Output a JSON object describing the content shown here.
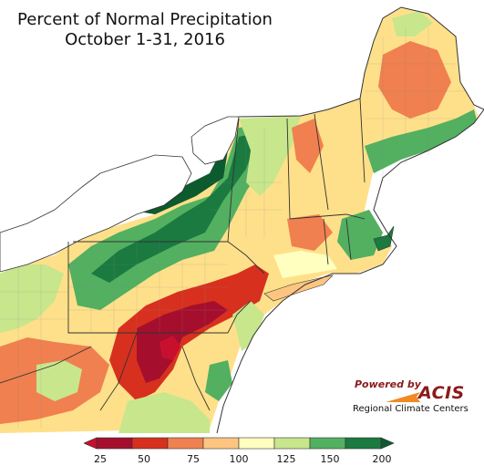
{
  "title": {
    "line1": "Percent of Normal Precipitation",
    "line2": "October 1-31, 2016"
  },
  "logo": {
    "powered_by": "Powered by",
    "name": "ACIS",
    "subtitle": "Regional Climate Centers"
  },
  "legend": {
    "ticks": [
      "25",
      "50",
      "75",
      "100",
      "125",
      "150",
      "200"
    ],
    "colors": [
      "#c8102e",
      "#a50f2d",
      "#d7301f",
      "#f08050",
      "#fdc580",
      "#ffffc0",
      "#c8e68c",
      "#52b060",
      "#1a7a40",
      "#0d5a2e"
    ]
  },
  "colors": {
    "water": "#ffffff",
    "border": "#333333"
  }
}
